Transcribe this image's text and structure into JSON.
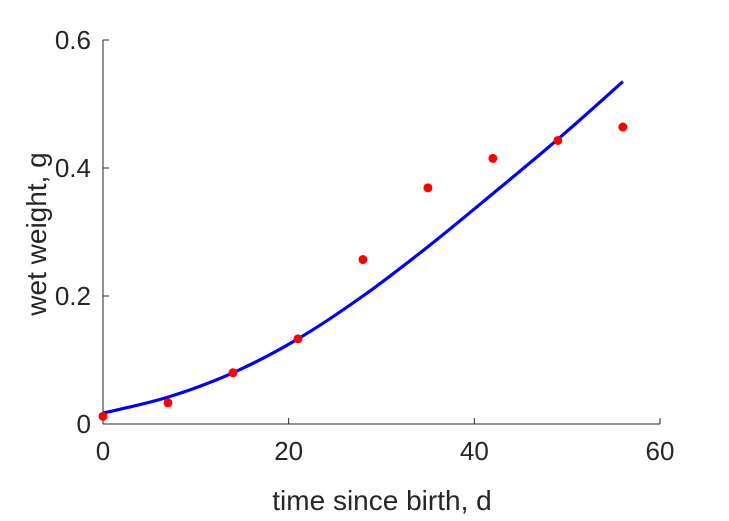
{
  "chart_data": {
    "type": "scatter",
    "title": "",
    "xlabel": "time since birth, d",
    "ylabel": "wet weight, g",
    "xlim": [
      0,
      60
    ],
    "ylim": [
      0,
      0.6
    ],
    "xticks": [
      0,
      20,
      40,
      60
    ],
    "xtick_labels": [
      "0",
      "20",
      "40",
      "60"
    ],
    "yticks": [
      0,
      0.2,
      0.4,
      0.6
    ],
    "ytick_labels": [
      "0",
      "0.2",
      "0.4",
      "0.6"
    ],
    "grid": false,
    "legend": "none",
    "series": [
      {
        "kind": "points",
        "color": "#ff0000",
        "x": [
          0,
          7,
          14,
          21,
          28,
          35,
          42,
          49,
          56
        ],
        "y": [
          0.012,
          0.033,
          0.08,
          0.133,
          0.257,
          0.369,
          0.415,
          0.443,
          0.464
        ]
      },
      {
        "kind": "line",
        "color": "#0000ff",
        "x": [
          0,
          7,
          14,
          21,
          28,
          35,
          42,
          49,
          56
        ],
        "y": [
          0.017,
          0.042,
          0.08,
          0.133,
          0.2,
          0.277,
          0.36,
          0.445,
          0.535
        ]
      }
    ]
  }
}
